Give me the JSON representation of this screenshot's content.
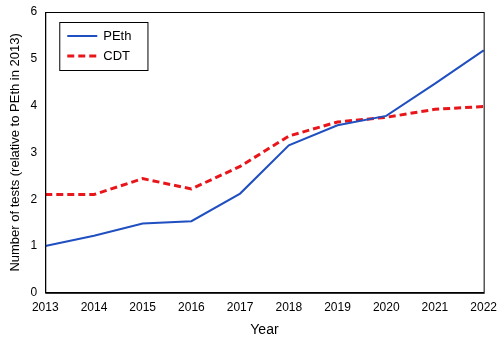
{
  "chart_data": {
    "type": "line",
    "x_label": "Year",
    "y_label": "Number of tests (relative to PEth in 2013)",
    "categories": [
      "2013",
      "2014",
      "2015",
      "2016",
      "2017",
      "2018",
      "2019",
      "2020",
      "2021",
      "2022"
    ],
    "series": [
      {
        "name": "PEth",
        "color": "#1f4fc1",
        "line_style": "solid",
        "values": [
          1.0,
          1.22,
          1.48,
          1.53,
          2.12,
          3.15,
          3.58,
          3.78,
          4.47,
          5.18
        ]
      },
      {
        "name": "CDT",
        "color": "#e8161b",
        "line_style": "dashed",
        "values": [
          2.1,
          2.1,
          2.44,
          2.22,
          2.7,
          3.35,
          3.65,
          3.75,
          3.92,
          3.98
        ]
      }
    ],
    "ylim": [
      0,
      6
    ],
    "yticks": [
      0,
      1,
      2,
      3,
      4,
      5,
      6
    ],
    "grid": false,
    "legend": "top-left"
  }
}
